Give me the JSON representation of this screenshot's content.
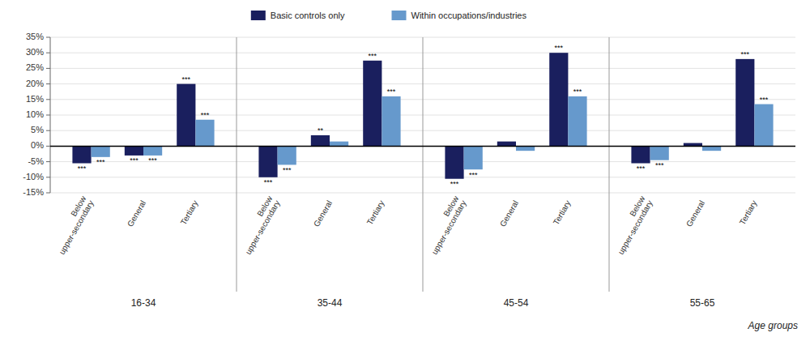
{
  "chart_data": {
    "type": "bar",
    "categories": [
      "Below\nupper-secondary",
      "General",
      "Tertiary",
      "Below\nupper-secondary",
      "General",
      "Tertiary",
      "Below\nupper-secondary",
      "General",
      "Tertiary",
      "Below\nupper-secondary",
      "General",
      "Tertiary"
    ],
    "groups": [
      "16-34",
      "35-44",
      "45-54",
      "55-65"
    ],
    "x_label": "Age groups",
    "series": [
      {
        "name": "Basic controls only",
        "color": "#1a1f5e",
        "values": [
          -5.5,
          -3.0,
          20.0,
          -10.0,
          3.5,
          27.5,
          -10.5,
          1.5,
          30.0,
          -5.5,
          1.0,
          28.0
        ],
        "annotations": [
          "***",
          "***",
          "***",
          "***",
          "**",
          "***",
          "***",
          null,
          "***",
          "***",
          null,
          "***"
        ]
      },
      {
        "name": "Within occupations/industries",
        "color": "#6699cc",
        "values": [
          -3.5,
          -3.0,
          8.5,
          -6.0,
          1.5,
          16.0,
          -7.5,
          -1.5,
          16.0,
          -4.5,
          -1.5,
          13.5
        ],
        "annotations": [
          "***",
          "***",
          "***",
          "***",
          null,
          "***",
          "***",
          null,
          "***",
          "***",
          null,
          "***"
        ]
      }
    ],
    "ylim": [
      -15,
      35
    ],
    "yticks": [
      {
        "value": -15,
        "label": "-15%"
      },
      {
        "value": -10,
        "label": "-10%"
      },
      {
        "value": -5,
        "label": "-5%"
      },
      {
        "value": 0,
        "label": "0%"
      },
      {
        "value": 5,
        "label": "5%"
      },
      {
        "value": 10,
        "label": "10%"
      },
      {
        "value": 15,
        "label": "15%"
      },
      {
        "value": 20,
        "label": "20%"
      },
      {
        "value": 25,
        "label": "25%"
      },
      {
        "value": 30,
        "label": "30%"
      },
      {
        "value": 35,
        "label": "35%"
      }
    ],
    "grid": true,
    "legend": "top"
  }
}
